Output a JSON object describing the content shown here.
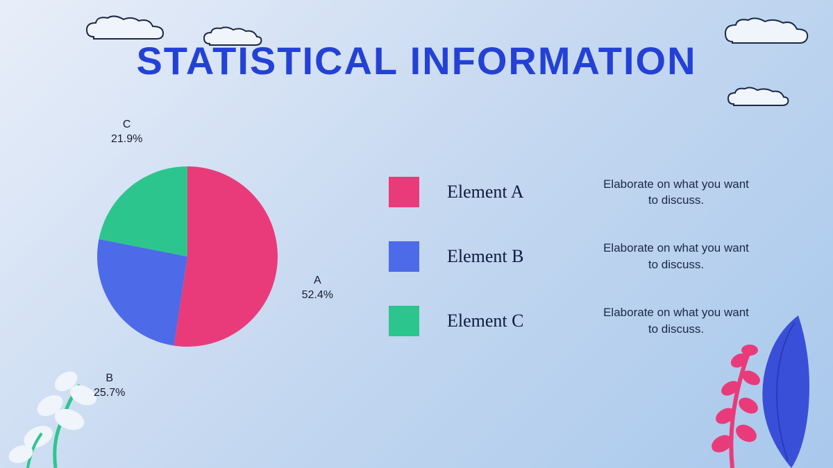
{
  "title": "STATISTICAL INFORMATION",
  "title_color": "#2441d6",
  "title_fontsize": 56,
  "background_gradient": [
    "#e8eef9",
    "#c5d8f0",
    "#a8c8ec"
  ],
  "pie_chart": {
    "type": "pie",
    "radius": 130,
    "start_angle": -90,
    "slices": [
      {
        "key": "A",
        "label": "A",
        "percent": 52.4,
        "percent_text": "52.4%",
        "color": "#e93b7a"
      },
      {
        "key": "B",
        "label": "B",
        "percent": 25.7,
        "percent_text": "25.7%",
        "color": "#4d6ae8"
      },
      {
        "key": "C",
        "label": "C",
        "percent": 21.9,
        "percent_text": "21.9%",
        "color": "#2dc58e"
      }
    ],
    "label_fontsize": 16,
    "label_color": "#1a1a2e"
  },
  "legend": {
    "items": [
      {
        "swatch_color": "#e93b7a",
        "label": "Element A",
        "description": "Elaborate on what you want to discuss."
      },
      {
        "swatch_color": "#4d6ae8",
        "label": "Element B",
        "description": "Elaborate on what you want to discuss."
      },
      {
        "swatch_color": "#2dc58e",
        "label": "Element C",
        "description": "Elaborate on what you want to discuss."
      }
    ],
    "label_fontsize": 26,
    "label_color": "#0d1b3d",
    "desc_fontsize": 17,
    "desc_color": "#1a2845",
    "swatch_size": 44
  },
  "decorations": {
    "cloud_fill": "#f0f4fb",
    "cloud_stroke": "#1a2845",
    "plant_left_stem": "#2dc58e",
    "plant_left_leaf": "#f0f4fb",
    "plant_right_leaf_big": "#3a4fd8",
    "plant_right_stem": "#e93b7a"
  }
}
